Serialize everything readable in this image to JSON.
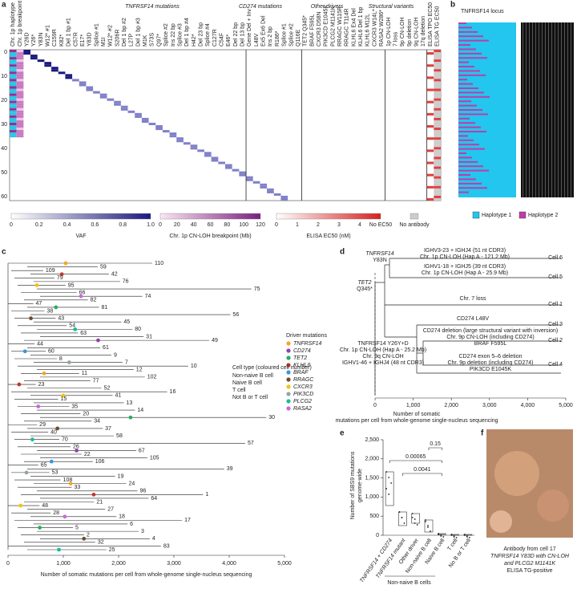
{
  "panels": {
    "a": {
      "label": "a",
      "column_groups": [
        "TNFRSF14 mutations",
        "CD274 mutations",
        "Other drivers",
        "Structural variants"
      ],
      "columns": [
        "Chr. 1p haplotype",
        "Chr. 1p breakpoint",
        "Y26D",
        "Y26*",
        "Y83N",
        "W12* #1",
        "C159R",
        "K82*",
        "Del 1 bp #1",
        "C57R",
        "E17*",
        "Y83D",
        "Splice #1",
        "M1I",
        "W12* #2",
        "S206R",
        "Del 1 bp #2",
        "L27P",
        "Del 1 bp #3",
        "M1K",
        "S73S",
        "Q97*",
        "Splice #2",
        "Ins 22 bp",
        "Splice #3",
        "Del 1 bp #4",
        "H42*",
        "Del 23 bp",
        "Splice #4",
        "C127R",
        "C54F",
        "E46*",
        "Del 22 bp",
        "Del 13 bp",
        "Gene Del + Inv",
        "L48V",
        "Ex5 Ex6 Del",
        "Ins 2 bp",
        "R186*",
        "Splice #1",
        "Splice #2",
        "Q116E",
        "TET2 Q345*",
        "BRAF F595L",
        "CXCR3 D58N",
        "PIK3CD E1045K",
        "PLCG2 M1141K",
        "RRAGC W115R",
        "RRAGC T114R",
        "KLHL6 Ex4 Del",
        "KLHL6 Del 1 bp",
        "KLHL6 M12L",
        "CXCR3 W14L*",
        "RASA2 W286*",
        "1p CN-LOH",
        "7 loss",
        "9p CN-LOH",
        "9p deletion",
        "9q CN-LOH",
        "17q deletion",
        "ELISA TPO EC50",
        "ELISA TG EC50"
      ],
      "row_ticks": [
        "0",
        "10",
        "20",
        "30",
        "40",
        "50",
        "60"
      ],
      "legend_vaf": {
        "title": "VAF",
        "ticks": [
          "0",
          "0.2",
          "0.4",
          "0.6",
          "0.8",
          "1.0"
        ]
      },
      "legend_cnloh": {
        "title": "Chr. 1p CN-LOH breakpoint (Mb)",
        "ticks": [
          "0",
          "20",
          "40",
          "60",
          "80",
          "100",
          "120"
        ]
      },
      "legend_elisa": {
        "title": "ELISA EC50 (nM)",
        "ticks": [
          "0",
          "1",
          "2",
          "3",
          "4",
          "No EC50"
        ]
      },
      "no_antibody": "No antibody"
    },
    "b": {
      "label": "b",
      "locus": "TNFRSF14 locus",
      "legend": [
        "Haplotype 1",
        "Haplotype 2"
      ]
    },
    "c": {
      "label": "c",
      "tips": [
        "110",
        "59",
        "109",
        "42",
        "79",
        "76",
        "95",
        "75",
        "66",
        "74",
        "82",
        "47",
        "81",
        "38",
        "56",
        "43",
        "45",
        "54",
        "80",
        "63",
        "31",
        "49",
        "44",
        "61",
        "60",
        "9",
        "8",
        "7",
        "10",
        "12",
        "11",
        "102",
        "77",
        "23",
        "52",
        "16",
        "41",
        "15",
        "13",
        "35",
        "14",
        "20",
        "30",
        "34",
        "29",
        "37",
        "40",
        "58",
        "70",
        "57",
        "26",
        "67",
        "22",
        "105",
        "106",
        "65",
        "39",
        "53",
        "19",
        "108",
        "24",
        "33",
        "96",
        "1",
        "64",
        "21",
        "48",
        "27",
        "28",
        "18",
        "17",
        "6",
        "5",
        "3",
        "2",
        "4",
        "32",
        "83",
        "25"
      ],
      "driver_title": "Driver mutations",
      "drivers": [
        {
          "name": "TNFRSF14",
          "color": "#f5a623"
        },
        {
          "name": "CD274",
          "color": "#8e44ad"
        },
        {
          "name": "TET2",
          "color": "#27ae60"
        },
        {
          "name": "KLHL6",
          "color": "#c0392b"
        },
        {
          "name": "BRAF",
          "color": "#3498db"
        },
        {
          "name": "RRAGC",
          "color": "#6d4c2f"
        },
        {
          "name": "CXCR3",
          "color": "#f1c40f"
        },
        {
          "name": "PIK3CD",
          "color": "#95a5a6"
        },
        {
          "name": "PLCG2",
          "color": "#1abc9c"
        },
        {
          "name": "RASA2",
          "color": "#c76bd6"
        }
      ],
      "celltype_title": "Cell type (coloured cell number)",
      "celltypes": [
        {
          "name": "Non-naive B cell",
          "color": "#2e86c1"
        },
        {
          "name": "Naive B cell",
          "color": "#4caf50"
        },
        {
          "name": "T cell",
          "color": "#c0392b"
        },
        {
          "name": "Not B or T cell",
          "color": "#999999"
        }
      ],
      "xticks": [
        "0",
        "1,000",
        "2,000",
        "3,000",
        "4,000",
        "5,000"
      ],
      "xlabel": "Number of somatic mutations per cell from whole-genome single-nucleus sequencing"
    },
    "d": {
      "label": "d",
      "root_mut": [
        "TNFRSF14",
        "Y83N"
      ],
      "tet2": [
        "TET2",
        "Q345*"
      ],
      "branch6": [
        "IGHV3-23 + IGHJ4 (51 nt CDR3)",
        "Chr. 1p CN-LOH (Hap A - 121.2 Mb)"
      ],
      "branch5": [
        "IGHV1-18 + IGHJ5 (39 nt CDR3)",
        "Chr. 1p CN-LOH (Hap A - 25.9 Mb)"
      ],
      "branch1": [
        "Chr. 7 loss"
      ],
      "branch3": [
        "CD274 L48V"
      ],
      "branch2": [
        "CD274 deletion (large structural variant with inversion)",
        "Chr. 9p CN-LOH (including CD274)",
        "BRAF F595L"
      ],
      "branch4": [
        "CD274 exon 5–6 deletion",
        "Chr. 9p deletion (including CD274)",
        "PIK3CD E1045K"
      ],
      "trunk": [
        "TNFRSF14 Y26Y+D",
        "Chr. 1p CN-LOH (Hap A - 25.2 Mb)",
        "Chr. 9q CN-LOH",
        "IGHV1-46 + IGHJ4 (48 nt CDR3)"
      ],
      "cells": [
        "Cell 6",
        "Cell 5",
        "Cell 1",
        "Cell 3",
        "Cell 2",
        "Cell 4"
      ],
      "xticks": [
        "0",
        "1,000",
        "2,000",
        "3,000",
        "4,000",
        "5,000"
      ],
      "xlabel": [
        "Number of somatic",
        "mutations per cell from whole-genome single-nucleus sequencing"
      ]
    },
    "e": {
      "label": "e",
      "ylabel": [
        "Number of SBS9 mutations",
        "genome-wide"
      ],
      "yticks": [
        "0",
        "500",
        "1,000",
        "1,500",
        "2,000",
        "2,500"
      ],
      "categories": [
        "TNFRSF14 + CD274",
        "TNFRSF14 mutant",
        "Other driver",
        "Non-naive B cell",
        "Naive B cell",
        "T cell",
        "No B or T cell"
      ],
      "pvalues": [
        "0.15",
        "0.00065",
        "0.0041"
      ],
      "group": "Non-naive B cells"
    },
    "f": {
      "label": "f",
      "caption": [
        "Antibody from cell 17",
        "TNFRSF14 Y83D with CN-LOH",
        "and PLCG2 M1141K",
        "ELISA TG-positive"
      ]
    }
  }
}
